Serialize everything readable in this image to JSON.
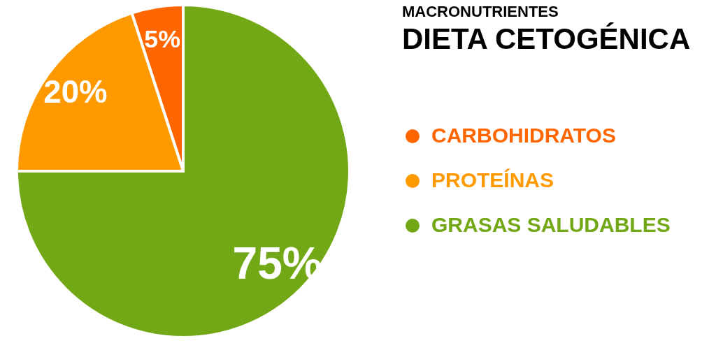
{
  "chart_data": {
    "type": "pie",
    "title": "MACRONUTRIENTES",
    "subtitle": "DIETA CETOGÉNICA",
    "categories": [
      "CARBOHIDRATOS",
      "PROTEÍNAS",
      "GRASAS SALUDABLES"
    ],
    "values": [
      5,
      20,
      75
    ],
    "colors": [
      "#ff6600",
      "#ff9900",
      "#72a815"
    ],
    "value_labels": [
      "5%",
      "20%",
      "75%"
    ],
    "legend": "right"
  }
}
